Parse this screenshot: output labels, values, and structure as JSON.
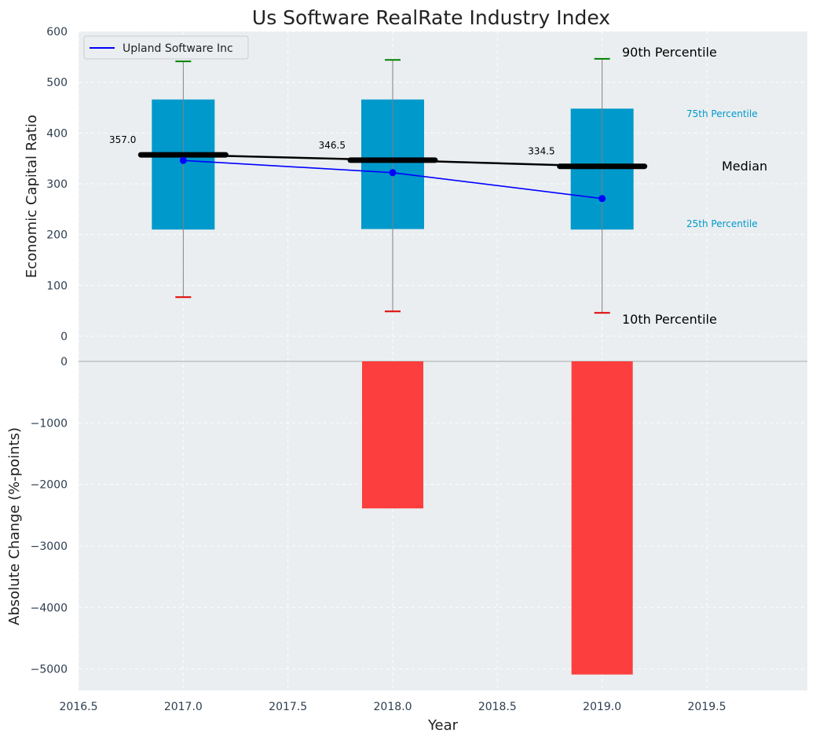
{
  "chart_data": [
    {
      "type": "box",
      "title": "Us Software RealRate Industry Index",
      "ylabel": "Economic Capital Ratio",
      "ylim": [
        0,
        600
      ],
      "yticks": [
        0,
        100,
        200,
        300,
        400,
        500,
        600
      ],
      "x": [
        2017,
        2018,
        2019
      ],
      "boxes": [
        {
          "x": 2017,
          "p10": 77,
          "p25": 210,
          "median": 357.0,
          "p75": 466,
          "p90": 541
        },
        {
          "x": 2018,
          "p10": 49,
          "p25": 211,
          "median": 346.5,
          "p75": 466,
          "p90": 544
        },
        {
          "x": 2019,
          "p10": 46,
          "p25": 210,
          "median": 334.5,
          "p75": 448,
          "p90": 546
        }
      ],
      "median_labels": [
        "357.0",
        "346.5",
        "334.5"
      ],
      "series": [
        {
          "name": "Upland Software Inc",
          "color": "#0000ff",
          "values": [
            346,
            322,
            271
          ]
        }
      ],
      "legend": "top-left",
      "annotations": {
        "p90": "90th Percentile",
        "p75": "75th Percentile",
        "median": "Median",
        "p25": "25th Percentile",
        "p10": "10th Percentile"
      },
      "grid": true
    },
    {
      "type": "bar",
      "xlabel": "Year",
      "ylabel": "Absolute Change (%-points)",
      "ylim": [
        -5350,
        0
      ],
      "yticks": [
        0,
        -1000,
        -2000,
        -3000,
        -4000,
        -5000
      ],
      "ytick_labels": [
        "0",
        "−1000",
        "−2000",
        "−3000",
        "−4000",
        "−5000"
      ],
      "xlim": [
        2016.5,
        2019.98
      ],
      "xticks": [
        2016.5,
        2017.0,
        2017.5,
        2018.0,
        2018.5,
        2019.0,
        2019.5
      ],
      "xtick_labels": [
        "2016.5",
        "2017.0",
        "2017.5",
        "2018.0",
        "2018.5",
        "2019.0",
        "2019.5"
      ],
      "x": [
        2018,
        2019
      ],
      "values": [
        -2390,
        -5090
      ],
      "color": "#ff2a2a",
      "grid": true
    }
  ],
  "colors": {
    "panel_bg": "#eaeef0",
    "box": "#0099cc",
    "median": "#000000",
    "p90_cap": "#008000",
    "p10_cap": "#e00000",
    "series": "#0000ff",
    "bar": "#ff2a2a"
  }
}
